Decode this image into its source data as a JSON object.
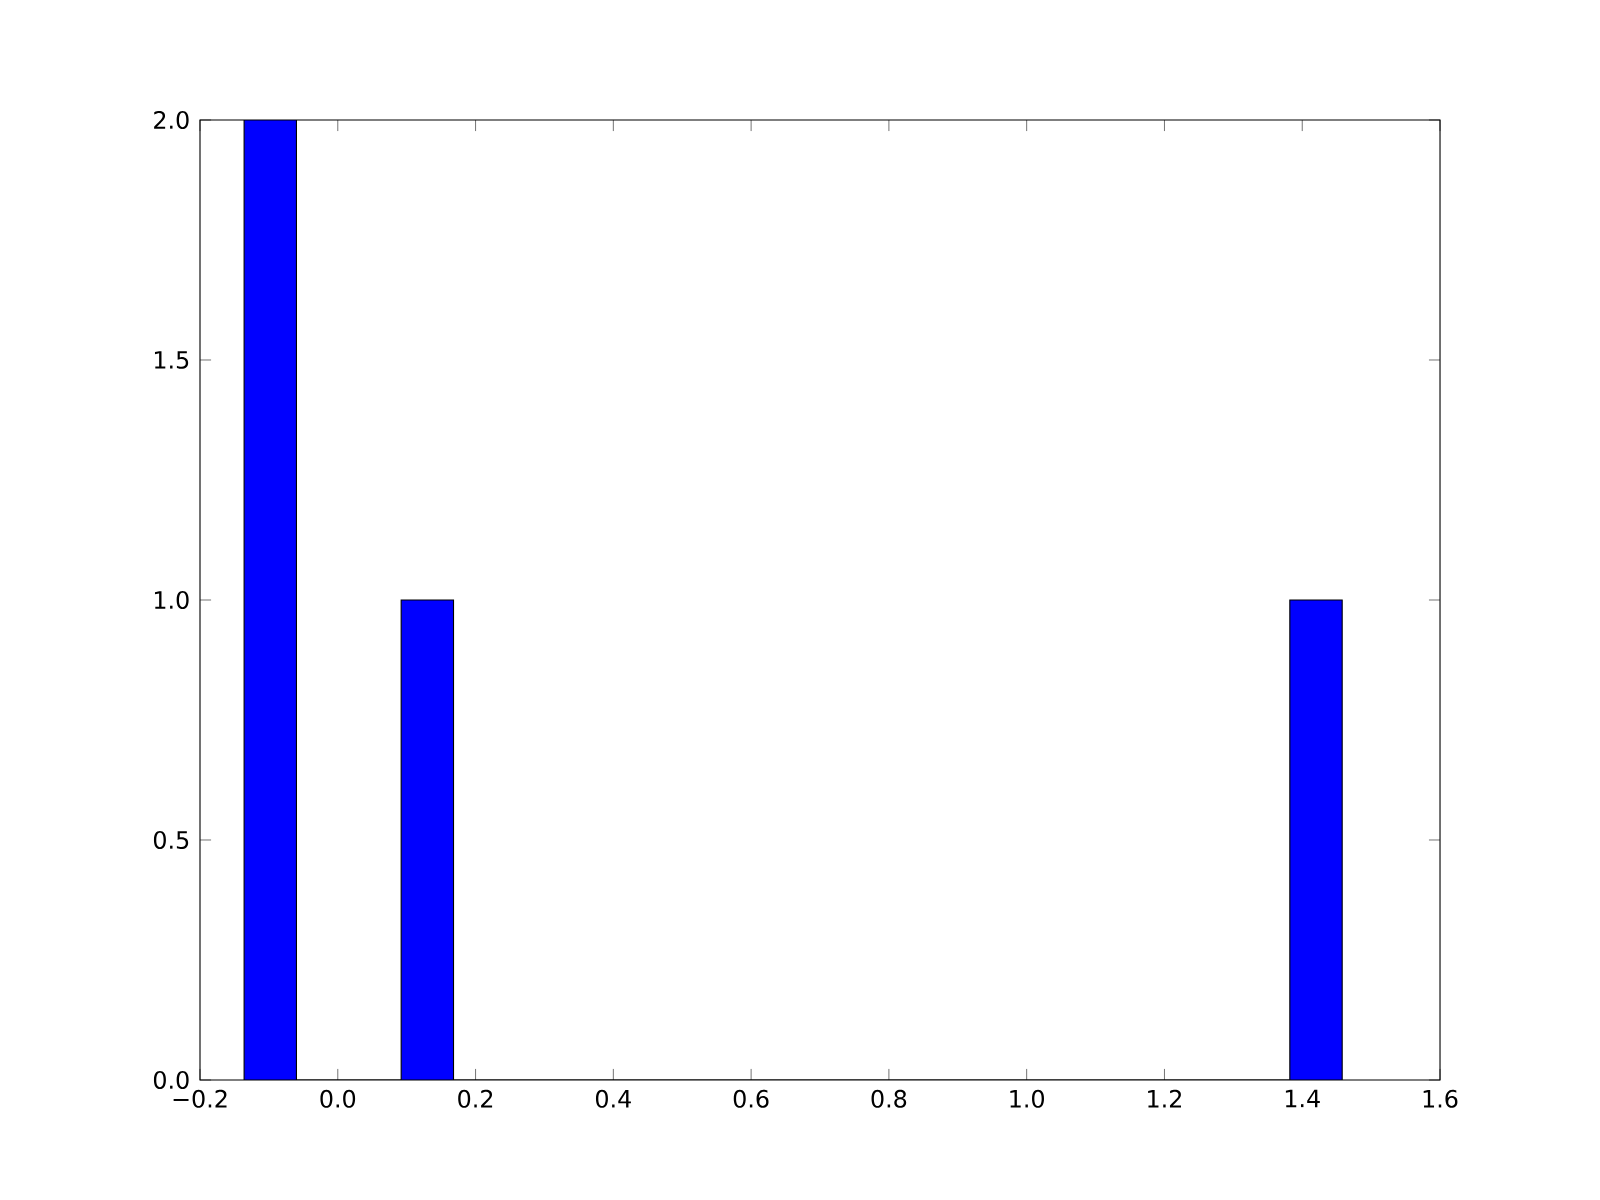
{
  "chart_data": {
    "type": "histogram",
    "bins": [
      -0.136,
      -0.06,
      0.092,
      0.168,
      1.382,
      1.458
    ],
    "values": [
      2,
      0,
      1,
      0,
      1
    ],
    "color": "#0000ff",
    "xlim": [
      -0.2,
      1.6
    ],
    "ylim": [
      0,
      2
    ],
    "xticks": [
      {
        "value": -0.2,
        "label": "−0.2"
      },
      {
        "value": 0,
        "label": "0.0"
      },
      {
        "value": 0.2,
        "label": "0.2"
      },
      {
        "value": 0.4,
        "label": "0.4"
      },
      {
        "value": 0.6,
        "label": "0.6"
      },
      {
        "value": 0.8,
        "label": "0.8"
      },
      {
        "value": 1.0,
        "label": "1.0"
      },
      {
        "value": 1.2,
        "label": "1.2"
      },
      {
        "value": 1.4,
        "label": "1.4"
      },
      {
        "value": 1.6,
        "label": "1.6"
      }
    ],
    "yticks": [
      {
        "value": 0,
        "label": "0.0"
      },
      {
        "value": 0.5,
        "label": "0.5"
      },
      {
        "value": 1.0,
        "label": "1.0"
      },
      {
        "value": 1.5,
        "label": "1.5"
      },
      {
        "value": 2.0,
        "label": "2.0"
      }
    ],
    "grid": false
  }
}
